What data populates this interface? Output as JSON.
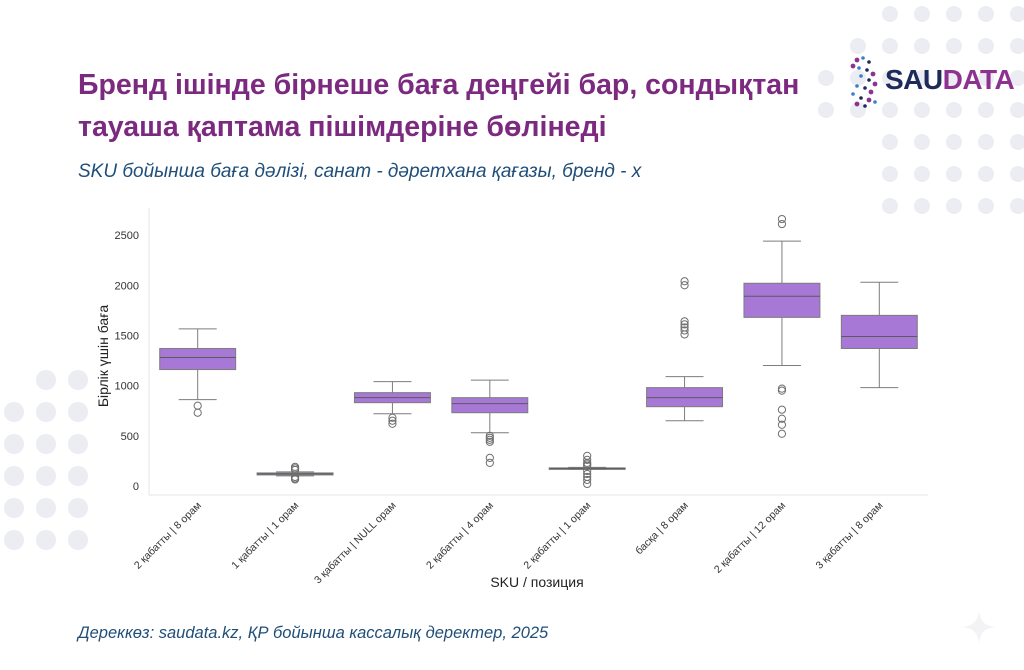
{
  "title": "Бренд ішінде бірнеше баға деңгейі бар, сондықтан тауаша қаптама пішімдеріне бөлінеді",
  "subtitle": "SKU бойынша баға дәлізі, санат - дәретхана қағазы, бренд - х",
  "source": "Дереккөз: saudata.kz, ҚР бойынша кассалық деректер, 2025",
  "logo": {
    "text_a": "SAU",
    "text_b": "DATA"
  },
  "colors": {
    "box_fill": "#a778d6",
    "box_stroke": "#7d7d7d",
    "title": "#7b2a7f",
    "subtitle": "#1f4e79",
    "dots": "#ececf3"
  },
  "chart_data": {
    "type": "box",
    "xlabel": "SKU / позиция",
    "ylabel": "Бірлік үшін баға",
    "ylim": [
      -90,
      2770
    ],
    "yticks": [
      0,
      500,
      1000,
      1500,
      2000,
      2500
    ],
    "categories": [
      "2 қабатты | 8 орам",
      "1 қабатты | 1 орам",
      "3 қабатты | NULL орам",
      "2 қабатты | 4 орам",
      "2 қабатты | 1 орам",
      "басқа | 8 орам",
      "2 қабатты | 12 орам",
      "3 қабатты | 8 орам"
    ],
    "boxes": [
      {
        "whislo": 860,
        "q1": 1160,
        "med": 1280,
        "q3": 1370,
        "whishi": 1565,
        "fliers": [
          800,
          730
        ]
      },
      {
        "whislo": 100,
        "q1": 110,
        "med": 120,
        "q3": 130,
        "whishi": 140,
        "fliers": [
          190,
          175,
          160,
          90,
          75,
          65
        ]
      },
      {
        "whislo": 720,
        "q1": 830,
        "med": 880,
        "q3": 930,
        "whishi": 1040,
        "fliers": [
          680,
          650,
          620
        ]
      },
      {
        "whislo": 530,
        "q1": 730,
        "med": 820,
        "q3": 880,
        "whishi": 1055,
        "fliers": [
          500,
          480,
          460,
          440,
          280,
          230
        ]
      },
      {
        "whislo": 165,
        "q1": 170,
        "med": 175,
        "q3": 180,
        "whishi": 185,
        "fliers": [
          300,
          260,
          230,
          215,
          200,
          150,
          120,
          90,
          60,
          20
        ]
      },
      {
        "whislo": 650,
        "q1": 790,
        "med": 880,
        "q3": 980,
        "whishi": 1090,
        "fliers": [
          2040,
          2000,
          1640,
          1610,
          1580,
          1550,
          1510
        ]
      },
      {
        "whislo": 1200,
        "q1": 1680,
        "med": 1890,
        "q3": 2020,
        "whishi": 2440,
        "fliers": [
          2660,
          2610,
          970,
          950,
          760,
          670,
          610,
          520
        ]
      },
      {
        "whislo": 980,
        "q1": 1370,
        "med": 1490,
        "q3": 1700,
        "whishi": 2030,
        "fliers": []
      }
    ]
  }
}
